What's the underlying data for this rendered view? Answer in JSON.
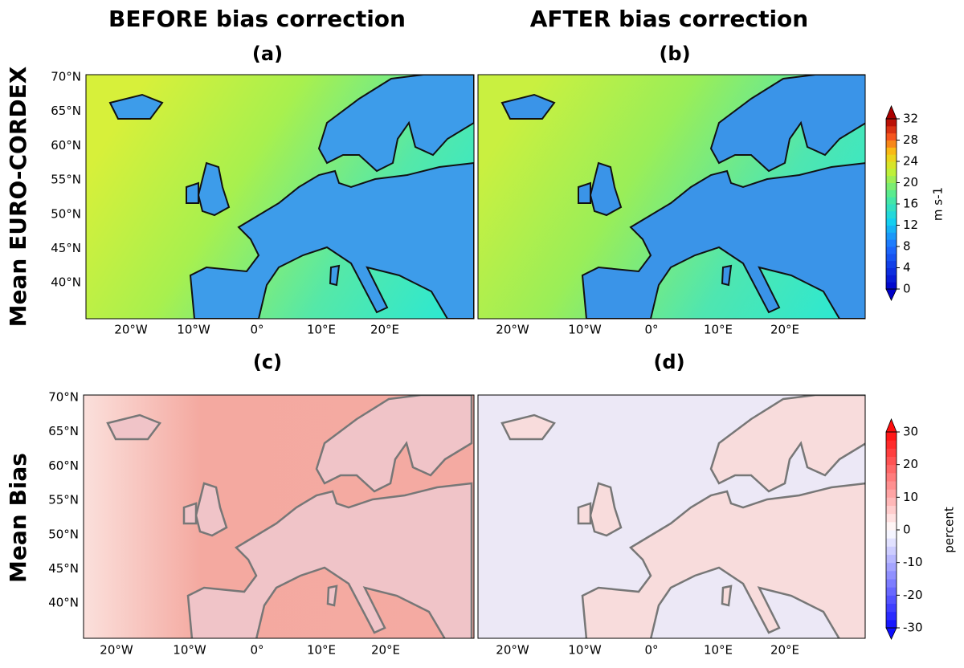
{
  "columns": [
    "BEFORE bias correction",
    "AFTER bias correction"
  ],
  "rows": [
    {
      "label": "Mean EURO-CORDEX",
      "panels": [
        "(a)",
        "(b)"
      ],
      "colorbar": {
        "label": "m s-1",
        "ticks": [
          0,
          4,
          8,
          12,
          16,
          20,
          24,
          28,
          32
        ]
      }
    },
    {
      "label": "Mean Bias",
      "panels": [
        "(c)",
        "(d)"
      ],
      "colorbar": {
        "label": "percent",
        "ticks": [
          -30,
          -20,
          -10,
          0,
          10,
          20,
          30
        ]
      }
    }
  ],
  "lat_ticks": [
    "70°N",
    "65°N",
    "60°N",
    "55°N",
    "50°N",
    "45°N",
    "40°N"
  ],
  "lon_ticks": [
    "20°W",
    "10°W",
    "0°",
    "10°E",
    "20°E"
  ]
}
